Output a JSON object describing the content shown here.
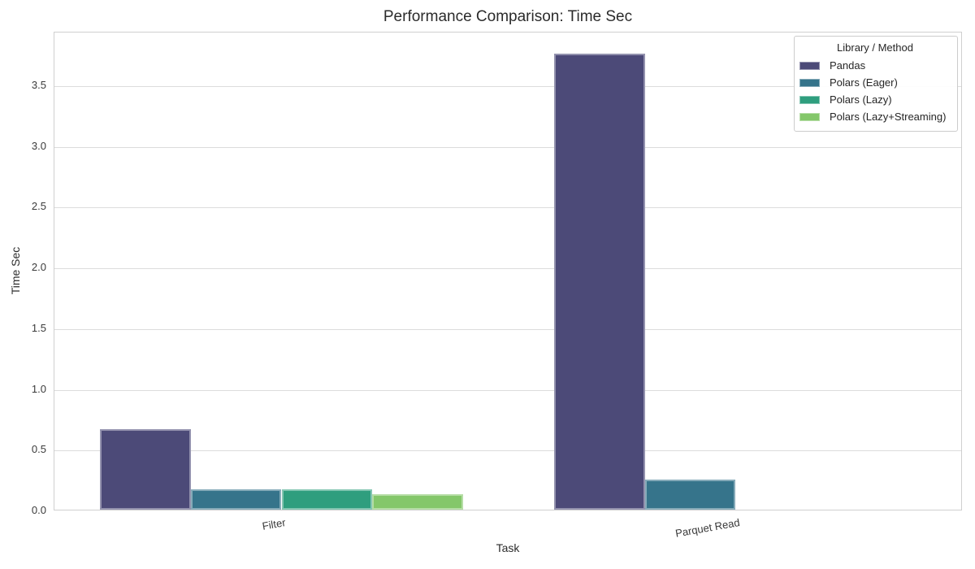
{
  "figure": {
    "background": "#ffffff"
  },
  "chart_data": {
    "type": "bar",
    "title": "Performance Comparison: Time Sec",
    "xlabel": "Task",
    "ylabel": "Time Sec",
    "categories": [
      "Filter",
      "Parquet Read"
    ],
    "series": [
      {
        "name": "Pandas",
        "color": "#4c4a78",
        "values": [
          0.66,
          3.75
        ]
      },
      {
        "name": "Polars (Eager)",
        "color": "#36748b",
        "values": [
          0.17,
          0.25
        ]
      },
      {
        "name": "Polars (Lazy)",
        "color": "#2f9e7e",
        "values": [
          0.17,
          0.0
        ]
      },
      {
        "name": "Polars (Lazy+Streaming)",
        "color": "#84c76a",
        "values": [
          0.13,
          0.0
        ]
      }
    ],
    "ylim": [
      0,
      3.94
    ],
    "yticks": [
      0.0,
      0.5,
      1.0,
      1.5,
      2.0,
      2.5,
      3.0,
      3.5
    ],
    "ytick_labels": [
      "0.0",
      "0.5",
      "1.0",
      "1.5",
      "2.0",
      "2.5",
      "3.0",
      "3.5"
    ],
    "grid": "horizontal",
    "bar_group_fraction": 0.8,
    "legend": {
      "title": "Library / Method",
      "position": "upper right"
    }
  }
}
